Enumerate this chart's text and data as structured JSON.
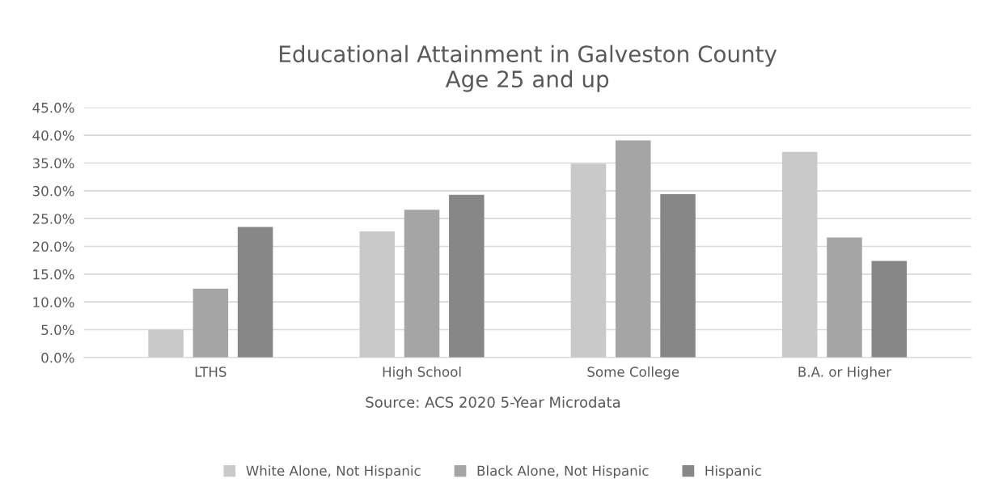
{
  "chart_data": {
    "type": "bar",
    "title": "Educational Attainment in Galveston County\nAge 25 and up",
    "categories": [
      "LTHS",
      "High School",
      "Some College",
      "B.A. or Higher"
    ],
    "series": [
      {
        "name": "White Alone, Not Hispanic",
        "color": "#c9c9c9",
        "values": [
          5.0,
          22.7,
          34.9,
          37.0
        ]
      },
      {
        "name": "Black Alone, Not Hispanic",
        "color": "#a5a5a5",
        "values": [
          12.4,
          26.6,
          39.1,
          21.6
        ]
      },
      {
        "name": "Hispanic",
        "color": "#878787",
        "values": [
          23.5,
          29.3,
          29.4,
          17.4
        ]
      }
    ],
    "ylim": [
      0,
      45
    ],
    "yticks": [
      {
        "value": 0,
        "label": "0.0%"
      },
      {
        "value": 5,
        "label": "5.0%"
      },
      {
        "value": 10,
        "label": "10.0%"
      },
      {
        "value": 15,
        "label": "15.0%"
      },
      {
        "value": 20,
        "label": "20.0%"
      },
      {
        "value": 25,
        "label": "25.0%"
      },
      {
        "value": 30,
        "label": "30.0%"
      },
      {
        "value": 35,
        "label": "35.0%"
      },
      {
        "value": 40,
        "label": "40.0%"
      },
      {
        "value": 45,
        "label": "45.0%"
      }
    ],
    "grid": "y",
    "legend": "bottom",
    "annotations": [
      "Source: ACS 2020 5-Year Microdata"
    ]
  }
}
